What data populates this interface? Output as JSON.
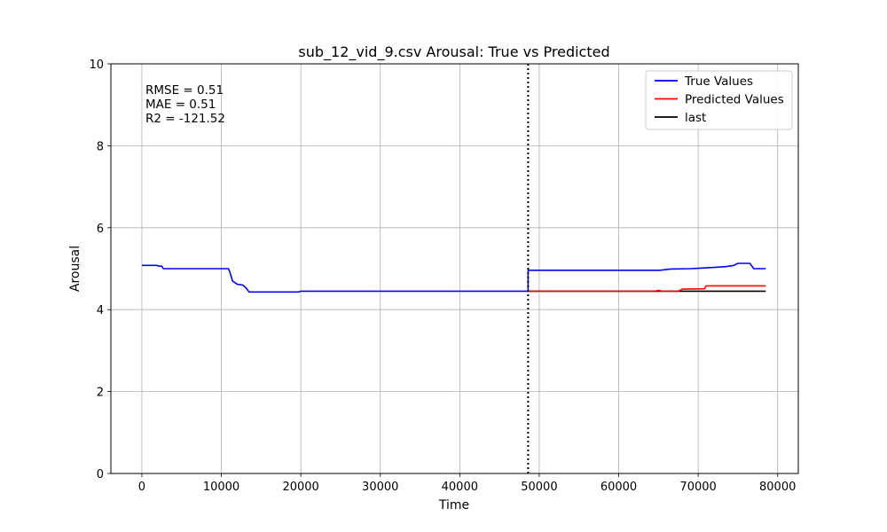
{
  "chart_data": {
    "type": "line",
    "title": "sub_12_vid_9.csv Arousal: True vs Predicted",
    "xlabel": "Time",
    "ylabel": "Arousal",
    "xlim": [
      -3900,
      82600
    ],
    "ylim": [
      0,
      10
    ],
    "xticks": [
      0,
      10000,
      20000,
      30000,
      40000,
      50000,
      60000,
      70000,
      80000
    ],
    "yticks": [
      0,
      2,
      4,
      6,
      8,
      10
    ],
    "grid": true,
    "legend_position": "top-right",
    "vline": {
      "x": 48600,
      "style": "dotted",
      "color": "#000000"
    },
    "metrics": [
      "RMSE = 0.51",
      "MAE = 0.51",
      "R2 = -121.52"
    ],
    "series": [
      {
        "name": "True Values",
        "color": "#0000ff",
        "x": [
          0,
          1800,
          2300,
          2500,
          2700,
          10900,
          11100,
          11400,
          12000,
          12700,
          13100,
          13500,
          19700,
          20000,
          48500,
          48600,
          48600,
          65200,
          66500,
          69000,
          70000,
          71000,
          72000,
          73500,
          74500,
          75000,
          76500,
          77000,
          78500
        ],
        "y": [
          5.08,
          5.08,
          5.06,
          5.06,
          5.0,
          5.0,
          4.9,
          4.7,
          4.62,
          4.6,
          4.53,
          4.43,
          4.43,
          4.45,
          4.45,
          4.45,
          4.96,
          4.96,
          4.99,
          5.0,
          5.01,
          5.02,
          5.03,
          5.05,
          5.08,
          5.13,
          5.13,
          5.0,
          5.0
        ]
      },
      {
        "name": "Predicted Values",
        "color": "#ff0000",
        "x": [
          48600,
          64500,
          65000,
          65500,
          67500,
          68000,
          70800,
          71000,
          78500
        ],
        "y": [
          4.45,
          4.45,
          4.47,
          4.45,
          4.45,
          4.5,
          4.51,
          4.58,
          4.58
        ]
      },
      {
        "name": "last",
        "color": "#000000",
        "x": [
          48600,
          78500
        ],
        "y": [
          4.45,
          4.45
        ]
      }
    ]
  }
}
